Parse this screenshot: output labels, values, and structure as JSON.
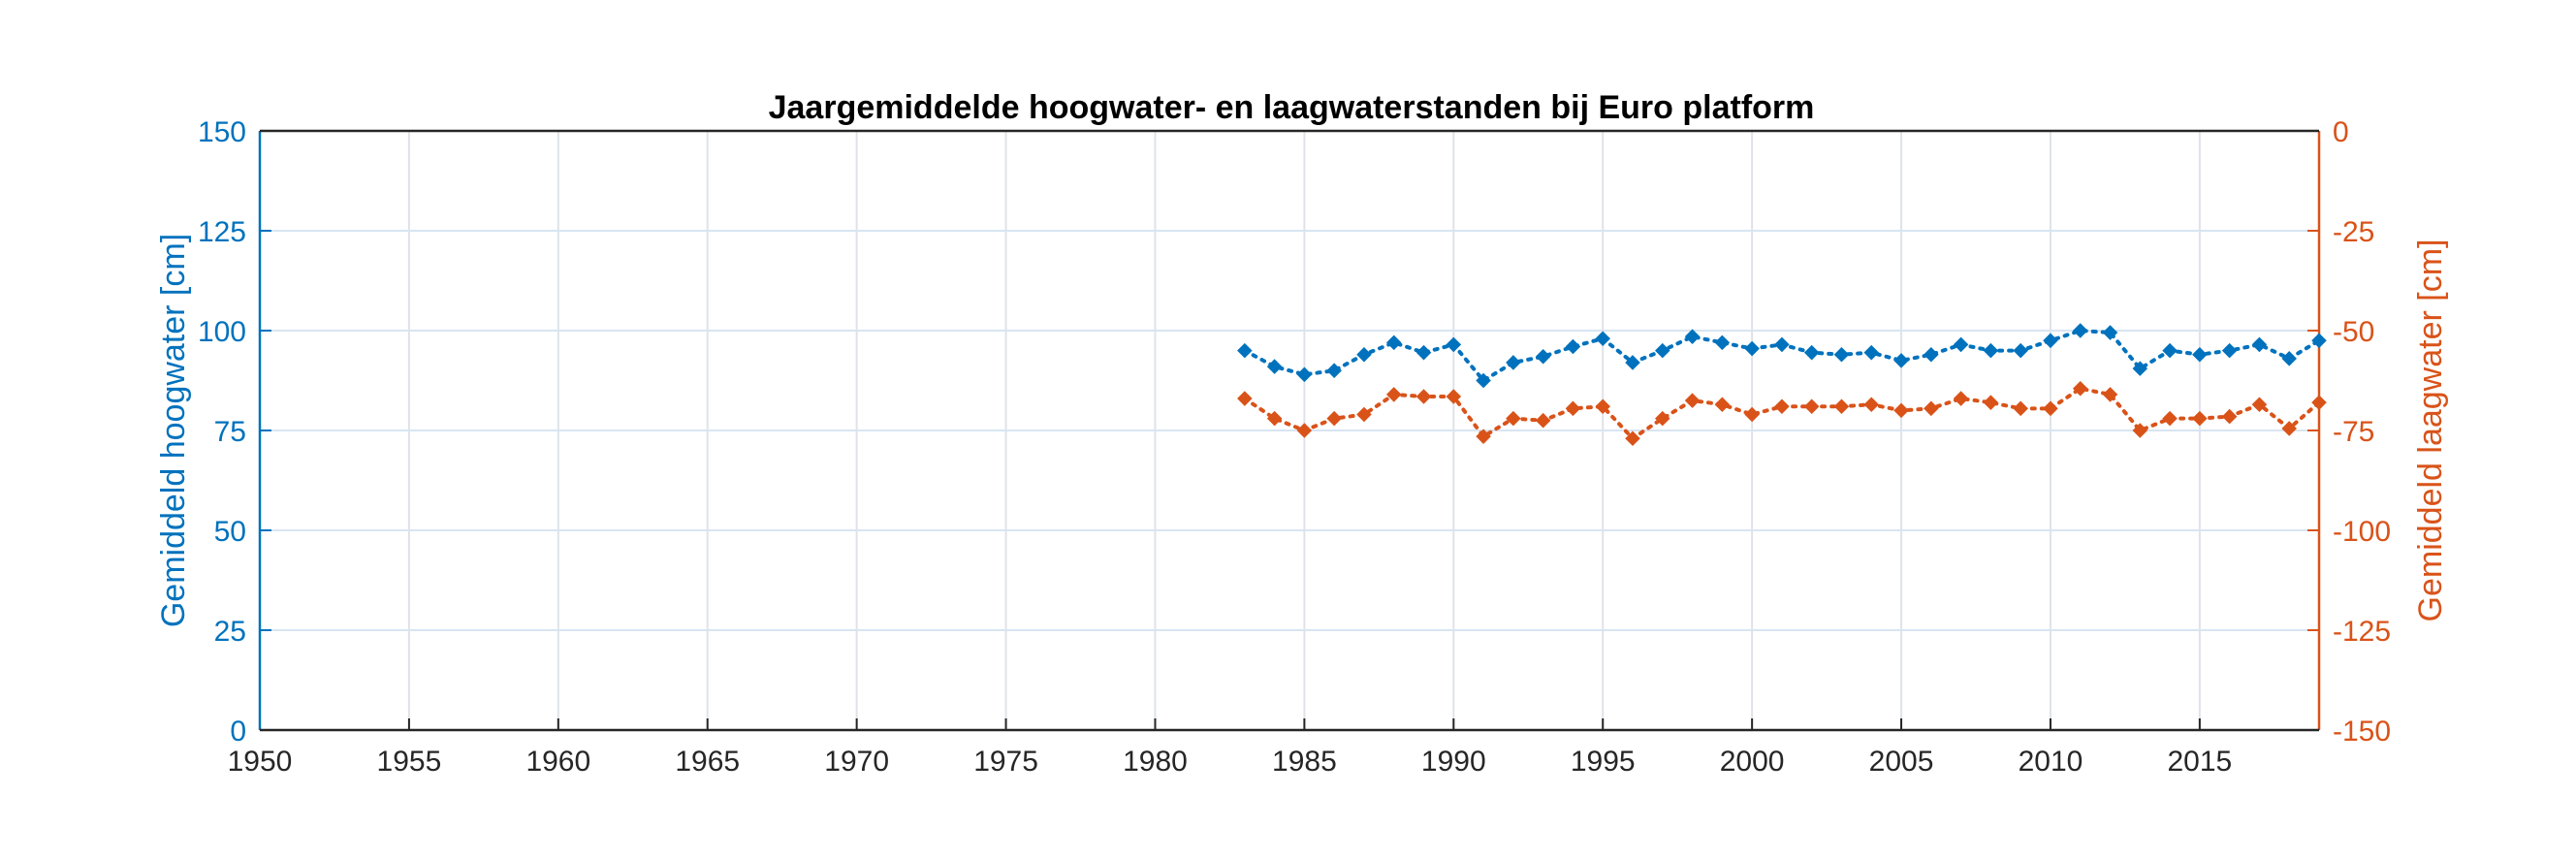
{
  "chart_data": {
    "type": "line",
    "title": "Jaargemiddelde hoogwater- en laagwaterstanden bij Euro platform",
    "xlabel": "",
    "xlim": [
      1950,
      2019
    ],
    "x_ticks": [
      1950,
      1955,
      1960,
      1965,
      1970,
      1975,
      1980,
      1985,
      1990,
      1995,
      2000,
      2005,
      2010,
      2015
    ],
    "grid": true,
    "colors": {
      "left": "#0072BD",
      "right": "#D95319"
    },
    "y_left": {
      "label": "Gemiddeld hoogwater [cm]",
      "ylim": [
        0,
        150
      ],
      "ticks": [
        0,
        25,
        50,
        75,
        100,
        125,
        150
      ]
    },
    "y_right": {
      "label": "Gemiddeld laagwater [cm]",
      "ylim": [
        -150,
        0
      ],
      "ticks": [
        -150,
        -125,
        -100,
        -75,
        -50,
        -25,
        0
      ]
    },
    "series": [
      {
        "axis": "left",
        "x": [
          1983,
          1984,
          1985,
          1986,
          1987,
          1988,
          1989,
          1990,
          1991,
          1992,
          1993,
          1994,
          1995,
          1996,
          1997,
          1998,
          1999,
          2000,
          2001,
          2002,
          2003,
          2004,
          2005,
          2006,
          2007,
          2008,
          2009,
          2010,
          2011,
          2012,
          2013,
          2014,
          2015,
          2016,
          2017,
          2018,
          2019
        ],
        "values": [
          95,
          91,
          89,
          90,
          94,
          97,
          94.5,
          96.5,
          87.5,
          92,
          93.5,
          96,
          98,
          92,
          95,
          98.5,
          97,
          95.5,
          96.5,
          94.5,
          94,
          94.5,
          92.5,
          94,
          96.5,
          95,
          95,
          97.5,
          100,
          99.5,
          90.5,
          95,
          94,
          95,
          96.5,
          93,
          97.5
        ]
      },
      {
        "axis": "right",
        "x": [
          1983,
          1984,
          1985,
          1986,
          1987,
          1988,
          1989,
          1990,
          1991,
          1992,
          1993,
          1994,
          1995,
          1996,
          1997,
          1998,
          1999,
          2000,
          2001,
          2002,
          2003,
          2004,
          2005,
          2006,
          2007,
          2008,
          2009,
          2010,
          2011,
          2012,
          2013,
          2014,
          2015,
          2016,
          2017,
          2018,
          2019
        ],
        "values": [
          -67,
          -72,
          -75,
          -72,
          -71,
          -66,
          -66.5,
          -66.5,
          -76.5,
          -72,
          -72.5,
          -69.5,
          -69,
          -77,
          -72,
          -67.5,
          -68.5,
          -71,
          -69,
          -69,
          -69,
          -68.5,
          -70,
          -69.5,
          -67,
          -68,
          -69.5,
          -69.5,
          -64.5,
          -66,
          -75,
          -72,
          -72,
          -71.5,
          -68.5,
          -74.5,
          -68
        ]
      }
    ]
  }
}
